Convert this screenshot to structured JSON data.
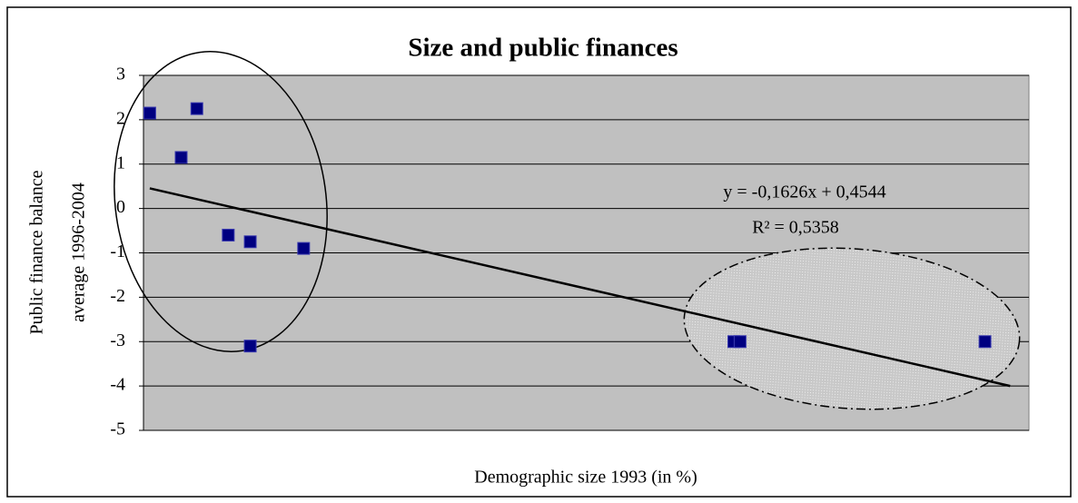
{
  "chart_data": {
    "type": "scatter",
    "title": "Size and public finances",
    "xlabel": "Demographic size 1993 (in %)",
    "ylabel": [
      "Public finance balance",
      "average 1996-2004"
    ],
    "x": [
      0,
      1.0,
      1.5,
      2.5,
      3.2,
      4.9,
      3.2,
      18.6,
      18.8,
      26.6
    ],
    "values": [
      2.15,
      1.15,
      2.25,
      -0.6,
      -0.75,
      -0.9,
      -3.1,
      -3.0,
      -3.0,
      -3.0
    ],
    "color": "#000080",
    "xlim": [
      -0.2,
      28
    ],
    "ylim": [
      -5,
      3
    ],
    "yticks": [
      -5,
      -4,
      -3,
      -2,
      -1,
      0,
      1,
      2,
      3
    ],
    "grid": true,
    "trendline": {
      "x": [
        0,
        27.4
      ],
      "values": [
        0.454,
        -4.0
      ]
    },
    "annotations": [
      "y = -0,1626x + 0,4544",
      "R² = 0,5358"
    ]
  }
}
